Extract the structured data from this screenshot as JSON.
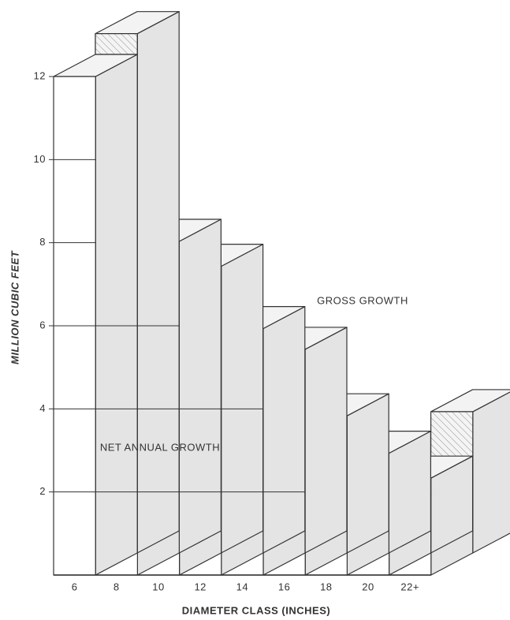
{
  "chart_data": {
    "type": "stepped-3d-bar",
    "categories": [
      "6",
      "8",
      "10",
      "12",
      "14",
      "16",
      "18",
      "20",
      "22+"
    ],
    "series": [
      {
        "name": "NET ANNUAL GROWTH",
        "color": "#ffffff",
        "values": [
          12.0,
          7.0,
          6.2,
          4.8,
          4.0,
          2.3,
          1.8,
          1.4,
          1.7
        ]
      },
      {
        "name": "GROSS GROWTH",
        "color": "#ffffff",
        "values": [
          12.5,
          7.5,
          6.9,
          5.4,
          4.9,
          3.3,
          2.4,
          1.8,
          3.4
        ]
      }
    ],
    "xlabel": "DIAMETER CLASS (INCHES)",
    "ylabel": "MILLION CUBIC FEET",
    "ylim": [
      0,
      12
    ],
    "yticks": [
      2,
      4,
      6,
      8,
      10,
      12
    ],
    "grid": true
  }
}
